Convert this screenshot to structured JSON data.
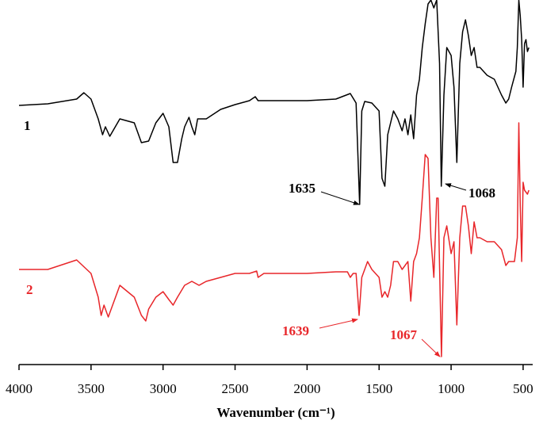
{
  "chart_data": {
    "type": "line",
    "x_label": "Wavenumber (cm⁻¹)",
    "xlim": [
      4000,
      450
    ],
    "xticks": [
      4000,
      3500,
      3000,
      2500,
      2000,
      1500,
      1000,
      500
    ],
    "ylim": [
      0,
      460
    ],
    "series": [
      {
        "name": "1",
        "color": "#000000",
        "x": [
          4000,
          3800,
          3600,
          3550,
          3500,
          3450,
          3420,
          3400,
          3370,
          3300,
          3200,
          3150,
          3100,
          3050,
          3000,
          2960,
          2930,
          2900,
          2870,
          2850,
          2820,
          2800,
          2780,
          2760,
          2700,
          2600,
          2500,
          2400,
          2360,
          2340,
          2300,
          2000,
          1800,
          1700,
          1660,
          1635,
          1620,
          1600,
          1550,
          1500,
          1480,
          1460,
          1440,
          1400,
          1370,
          1340,
          1320,
          1300,
          1280,
          1260,
          1240,
          1220,
          1200,
          1180,
          1160,
          1140,
          1120,
          1100,
          1080,
          1068,
          1050,
          1030,
          1000,
          980,
          960,
          940,
          920,
          900,
          880,
          860,
          840,
          820,
          800,
          750,
          700,
          650,
          620,
          600,
          580,
          550,
          540,
          530,
          520,
          510,
          500,
          490,
          480,
          470,
          460
        ],
        "values": [
          327,
          329,
          335,
          343,
          335,
          310,
          290,
          300,
          288,
          310,
          305,
          280,
          282,
          305,
          317,
          300,
          255,
          255,
          285,
          300,
          312,
          300,
          290,
          310,
          310,
          322,
          328,
          333,
          338,
          333,
          333,
          333,
          335,
          342,
          330,
          202,
          320,
          332,
          330,
          320,
          235,
          225,
          290,
          320,
          310,
          295,
          310,
          290,
          315,
          285,
          340,
          360,
          400,
          430,
          455,
          460,
          450,
          460,
          380,
          225,
          340,
          400,
          390,
          350,
          255,
          380,
          420,
          435,
          415,
          390,
          400,
          375,
          375,
          365,
          360,
          340,
          330,
          335,
          350,
          370,
          400,
          460,
          440,
          410,
          350,
          405,
          410,
          395,
          400
        ]
      },
      {
        "name": "2",
        "color": "#e8262a",
        "x": [
          4000,
          3800,
          3600,
          3500,
          3450,
          3430,
          3410,
          3380,
          3300,
          3200,
          3150,
          3120,
          3100,
          3050,
          3000,
          2960,
          2930,
          2900,
          2850,
          2800,
          2750,
          2700,
          2600,
          2500,
          2400,
          2350,
          2340,
          2300,
          2000,
          1800,
          1720,
          1700,
          1680,
          1660,
          1639,
          1620,
          1580,
          1550,
          1500,
          1480,
          1460,
          1440,
          1420,
          1400,
          1370,
          1340,
          1300,
          1280,
          1260,
          1240,
          1220,
          1200,
          1180,
          1160,
          1140,
          1120,
          1100,
          1090,
          1067,
          1050,
          1030,
          1000,
          980,
          960,
          940,
          920,
          900,
          880,
          860,
          840,
          820,
          800,
          750,
          700,
          650,
          620,
          600,
          560,
          540,
          530,
          520,
          510,
          500,
          490,
          470,
          460
        ],
        "values": [
          120,
          120,
          132,
          115,
          85,
          62,
          75,
          60,
          100,
          85,
          62,
          55,
          70,
          85,
          92,
          82,
          75,
          85,
          100,
          105,
          100,
          105,
          110,
          115,
          115,
          118,
          110,
          115,
          115,
          117,
          117,
          110,
          115,
          115,
          62,
          110,
          130,
          120,
          110,
          85,
          92,
          85,
          100,
          130,
          130,
          120,
          130,
          80,
          130,
          140,
          160,
          210,
          265,
          260,
          160,
          110,
          210,
          210,
          10,
          160,
          175,
          140,
          155,
          50,
          160,
          200,
          200,
          175,
          140,
          180,
          160,
          160,
          155,
          155,
          145,
          125,
          130,
          130,
          160,
          305,
          200,
          130,
          230,
          220,
          215,
          220
        ]
      }
    ],
    "annotations": [
      "1635",
      "1068",
      "1639",
      "1067"
    ]
  }
}
